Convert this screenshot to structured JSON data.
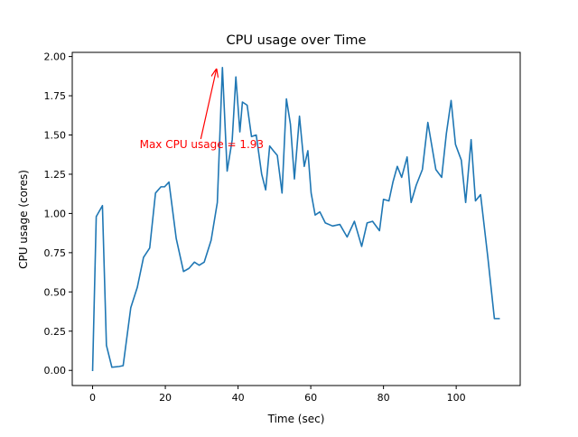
{
  "chart_data": {
    "type": "line",
    "title": "CPU usage over Time",
    "xlabel": "Time (sec)",
    "ylabel": "CPU usage (cores)",
    "xlim": [
      -5.6,
      117.6
    ],
    "ylim": [
      -0.0965,
      2.0265
    ],
    "xticks": [
      0,
      20,
      40,
      60,
      80,
      100
    ],
    "xtick_labels": [
      "0",
      "20",
      "40",
      "60",
      "80",
      "100"
    ],
    "yticks": [
      0.0,
      0.25,
      0.5,
      0.75,
      1.0,
      1.25,
      1.5,
      1.75,
      2.0
    ],
    "ytick_labels": [
      "0.00",
      "0.25",
      "0.50",
      "0.75",
      "1.00",
      "1.25",
      "1.50",
      "1.75",
      "2.00"
    ],
    "grid": false,
    "line_color": "#1f77b4",
    "annotation": {
      "text": "Max CPU usage = 1.93",
      "x": 34.3,
      "y": 1.93,
      "text_x": 30.0,
      "text_y": 1.44,
      "color": "#ff0000"
    },
    "series": [
      {
        "x": [
          0,
          1,
          2.7,
          3.8,
          5.3,
          7.3,
          8.4,
          10.5,
          12.3,
          14,
          15.7,
          17.3,
          18.8,
          19.8,
          21,
          23,
          25,
          26.5,
          28,
          29.3,
          30.7,
          32.6,
          34.3,
          35.7,
          37,
          38.4,
          39.4,
          40.5,
          41.2,
          42.5,
          43.7,
          45,
          46.5,
          47.6,
          48.7,
          49.7,
          50.8,
          52.1,
          53.3,
          54.4,
          55.5,
          56.9,
          58.2,
          59.2,
          60.1,
          61.2,
          62.5,
          64,
          66,
          68,
          70,
          72,
          74,
          75.5,
          77,
          78.9,
          80,
          81.5,
          82.6,
          83.8,
          85,
          86.5,
          87.6,
          89,
          90.7,
          92.2,
          94.4,
          96,
          97.3,
          98.6,
          99.8,
          101.4,
          102.6,
          104.1,
          105.3,
          106.7,
          108.7,
          110.5,
          111.8
        ],
        "y": [
          0.0,
          0.98,
          1.05,
          0.16,
          0.02,
          0.025,
          0.03,
          0.4,
          0.53,
          0.72,
          0.78,
          1.13,
          1.17,
          1.17,
          1.2,
          0.84,
          0.63,
          0.65,
          0.69,
          0.67,
          0.69,
          0.83,
          1.07,
          1.93,
          1.27,
          1.47,
          1.87,
          1.52,
          1.71,
          1.69,
          1.49,
          1.5,
          1.25,
          1.15,
          1.43,
          1.4,
          1.37,
          1.13,
          1.73,
          1.57,
          1.22,
          1.62,
          1.3,
          1.4,
          1.13,
          0.99,
          1.01,
          0.94,
          0.92,
          0.93,
          0.85,
          0.95,
          0.79,
          0.94,
          0.95,
          0.89,
          1.09,
          1.08,
          1.2,
          1.3,
          1.23,
          1.36,
          1.07,
          1.18,
          1.28,
          1.58,
          1.28,
          1.23,
          1.51,
          1.72,
          1.44,
          1.34,
          1.07,
          1.47,
          1.08,
          1.12,
          0.72,
          0.33,
          0.33
        ]
      }
    ]
  }
}
